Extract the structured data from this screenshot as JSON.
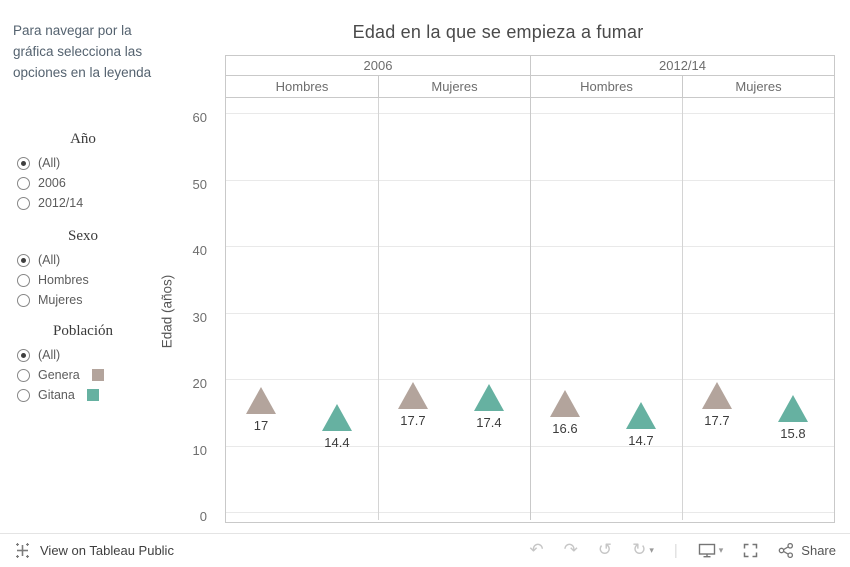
{
  "sidebar": {
    "instructions": "Para navegar por la gráfica selecciona las opciones en la leyenda",
    "filters": [
      {
        "title": "Año",
        "options": [
          {
            "label": "(All)",
            "selected": true
          },
          {
            "label": "2006",
            "selected": false
          },
          {
            "label": "2012/14",
            "selected": false
          }
        ]
      },
      {
        "title": "Sexo",
        "options": [
          {
            "label": "(All)",
            "selected": true
          },
          {
            "label": "Hombres",
            "selected": false
          },
          {
            "label": "Mujeres",
            "selected": false
          }
        ]
      },
      {
        "title": "Población",
        "options": [
          {
            "label": "(All)",
            "selected": true
          },
          {
            "label": "Genera",
            "selected": false,
            "swatch": "#b3a49c"
          },
          {
            "label": "Gitana",
            "selected": false,
            "swatch": "#66b1a1"
          }
        ]
      }
    ]
  },
  "chart_data": {
    "type": "scatter",
    "marker_shape": "triangle-up",
    "title": "Edad en la que se empieza a fumar",
    "ylabel": "Edad (años)",
    "ylim": [
      0,
      63
    ],
    "yticks": [
      0,
      10,
      20,
      30,
      40,
      50,
      60
    ],
    "grid": true,
    "column_groups": [
      "2006",
      "2012/14"
    ],
    "columns": [
      "Hombres",
      "Mujeres",
      "Hombres",
      "Mujeres"
    ],
    "series": [
      {
        "name": "Genera",
        "color": "#b3a49c",
        "values": [
          17,
          17.7,
          16.6,
          17.7
        ],
        "labels": [
          "17",
          "17.7",
          "16.6",
          "17.7"
        ]
      },
      {
        "name": "Gitana",
        "color": "#66b1a1",
        "values": [
          14.4,
          17.4,
          14.7,
          15.8
        ],
        "labels": [
          "14.4",
          "17.4",
          "14.7",
          "15.8"
        ]
      }
    ]
  },
  "toolbar": {
    "view_on_tableau": "View on Tableau Public",
    "undo_icon": "↶",
    "redo_icon": "↷",
    "replay_icon": "↺",
    "refresh_icon": "↻",
    "caret_icon": "▾",
    "divider_glyph": "|",
    "share_label": "Share"
  }
}
